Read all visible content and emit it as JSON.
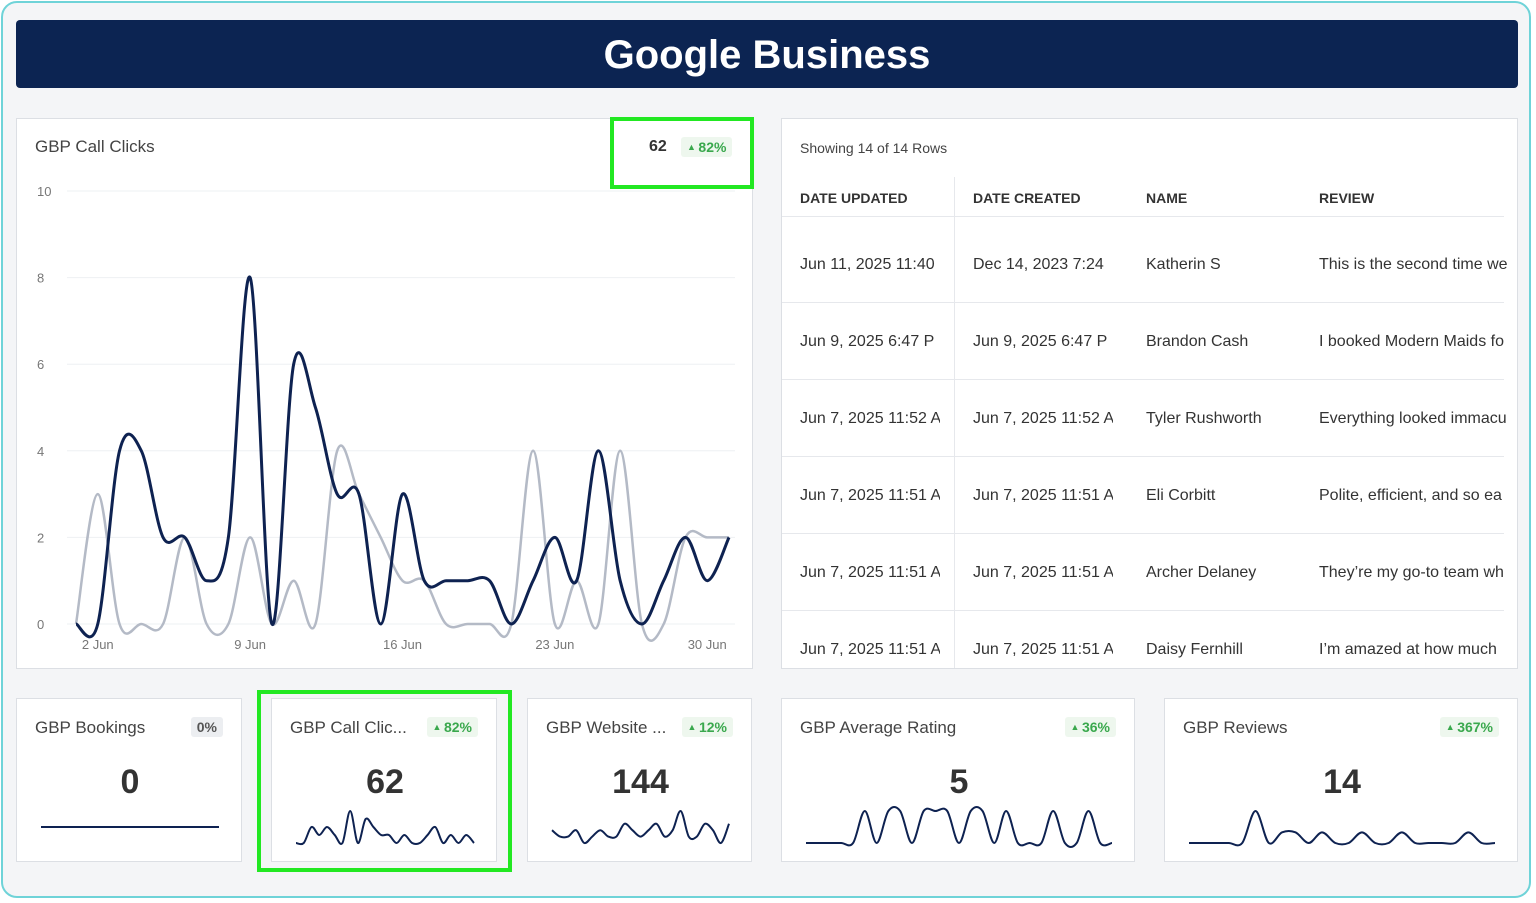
{
  "header": {
    "title": "Google Business"
  },
  "chart_data": {
    "type": "line",
    "title": "GBP Call Clicks",
    "total": 62,
    "change": "82%",
    "categories": [
      null,
      "2 Jun",
      null,
      null,
      null,
      null,
      null,
      null,
      "9 Jun",
      null,
      null,
      null,
      null,
      null,
      null,
      "16 Jun",
      null,
      null,
      null,
      null,
      null,
      null,
      "23 Jun",
      null,
      null,
      null,
      null,
      null,
      null,
      "30 Jun",
      null
    ],
    "series": [
      {
        "color": "#b4bac6",
        "values": [
          0,
          3,
          0,
          0,
          0,
          2,
          0,
          0,
          2,
          0,
          1,
          0,
          4,
          3,
          2,
          1,
          1,
          0,
          0,
          0,
          0,
          4,
          0,
          1,
          0,
          4,
          0,
          0,
          2,
          2,
          2
        ]
      },
      {
        "color": "#0e2251",
        "values": [
          0,
          0,
          4,
          4,
          2,
          2,
          1,
          2,
          8,
          0,
          6,
          5,
          3,
          3,
          0,
          3,
          1,
          1,
          1,
          1,
          0,
          1,
          2,
          1,
          4,
          1,
          0,
          1,
          2,
          1,
          2
        ]
      }
    ],
    "ylim": [
      0,
      10
    ],
    "yticks": [
      0,
      2,
      4,
      6,
      8,
      10
    ],
    "grid": true
  },
  "table": {
    "caption": "Showing 14 of 14 Rows",
    "columns": [
      "DATE UPDATED",
      "DATE CREATED",
      "NAME",
      "REVIEW"
    ],
    "rows": [
      [
        "Jun 11, 2025 11:40",
        "Dec 14, 2023 7:24",
        "Katherin S",
        "This is the second time we"
      ],
      [
        "Jun 9, 2025 6:47 P",
        "Jun 9, 2025 6:47 P",
        "Brandon Cash",
        "I booked Modern Maids fo"
      ],
      [
        "Jun 7, 2025 11:52 A",
        "Jun 7, 2025 11:52 A",
        "Tyler Rushworth",
        "Everything looked immacu"
      ],
      [
        "Jun 7, 2025 11:51 A",
        "Jun 7, 2025 11:51 A",
        "Eli Corbitt",
        "Polite, efficient, and so ea"
      ],
      [
        "Jun 7, 2025 11:51 A",
        "Jun 7, 2025 11:51 A",
        "Archer Delaney",
        "They’re my go-to team wh"
      ],
      [
        "Jun 7, 2025 11:51 A",
        "Jun 7, 2025 11:51 A",
        "Daisy Fernhill",
        "I’m amazed at how much"
      ]
    ]
  },
  "kpis": [
    {
      "title": "GBP Bookings",
      "change": "0%",
      "trend": "none",
      "value": 0,
      "spark": [
        0,
        0,
        0,
        0,
        0,
        0,
        0,
        0,
        0,
        0
      ]
    },
    {
      "title": "GBP Call Clic...",
      "change": "82%",
      "trend": "up",
      "value": 62,
      "spark": [
        0,
        0,
        2,
        1,
        2,
        1,
        0,
        4,
        0,
        3,
        2,
        1,
        1,
        0,
        1,
        0,
        0,
        1,
        2,
        0,
        1,
        0,
        1,
        0
      ]
    },
    {
      "title": "GBP Website ...",
      "change": "12%",
      "trend": "up",
      "value": 144,
      "spark": [
        2,
        1,
        1,
        2,
        0,
        1,
        2,
        1,
        1,
        3,
        2,
        1,
        2,
        3,
        1,
        2,
        5,
        1,
        1,
        3,
        2,
        0,
        3
      ]
    },
    {
      "title": "GBP Average Rating",
      "change": "36%",
      "trend": "up",
      "value": 5,
      "spark": [
        0,
        0,
        0,
        0,
        0,
        5,
        0,
        5,
        5,
        0,
        5,
        5,
        5,
        0,
        5,
        5,
        0,
        5,
        0,
        0,
        0,
        5,
        0,
        0,
        5,
        0,
        0
      ]
    },
    {
      "title": "GBP Reviews",
      "change": "367%",
      "trend": "up",
      "value": 14,
      "spark": [
        0,
        0,
        0,
        0,
        0,
        3,
        0,
        1,
        1,
        0,
        1,
        0,
        0,
        1,
        0,
        0,
        1,
        0,
        0,
        0,
        0,
        1,
        0,
        0
      ]
    }
  ]
}
